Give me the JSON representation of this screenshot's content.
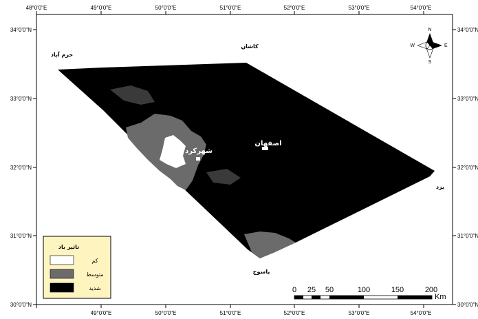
{
  "map": {
    "lon_ticks": [
      "48°0'0\"E",
      "49°0'0\"E",
      "50°0'0\"E",
      "51°0'0\"E",
      "52°0'0\"E",
      "53°0'0\"E",
      "54°0'0\"E"
    ],
    "lat_ticks": [
      "34°0'0\"N",
      "33°0'0\"N",
      "32°0'0\"N",
      "31°0'0\"N",
      "30°0'0\"N"
    ],
    "cities": {
      "khorramabad": "خرم آباد",
      "kashan": "کاشان",
      "isfahan": "اصفهان",
      "shahrekord": "شهرکرد",
      "yazd": "یزد",
      "yasuj": "یاسوج"
    }
  },
  "legend": {
    "title": "تاثیر باد",
    "items": [
      {
        "label": "کم",
        "color": "#ffffff"
      },
      {
        "label": "متوسط",
        "color": "#6b6b6b"
      },
      {
        "label": "شدید",
        "color": "#000000"
      }
    ]
  },
  "scale_bar": {
    "labels": [
      "0",
      "25",
      "50",
      "100",
      "150",
      "200"
    ],
    "unit": "Km"
  },
  "north_arrow": {
    "n": "N",
    "s": "S",
    "e": "E",
    "w": "W"
  }
}
